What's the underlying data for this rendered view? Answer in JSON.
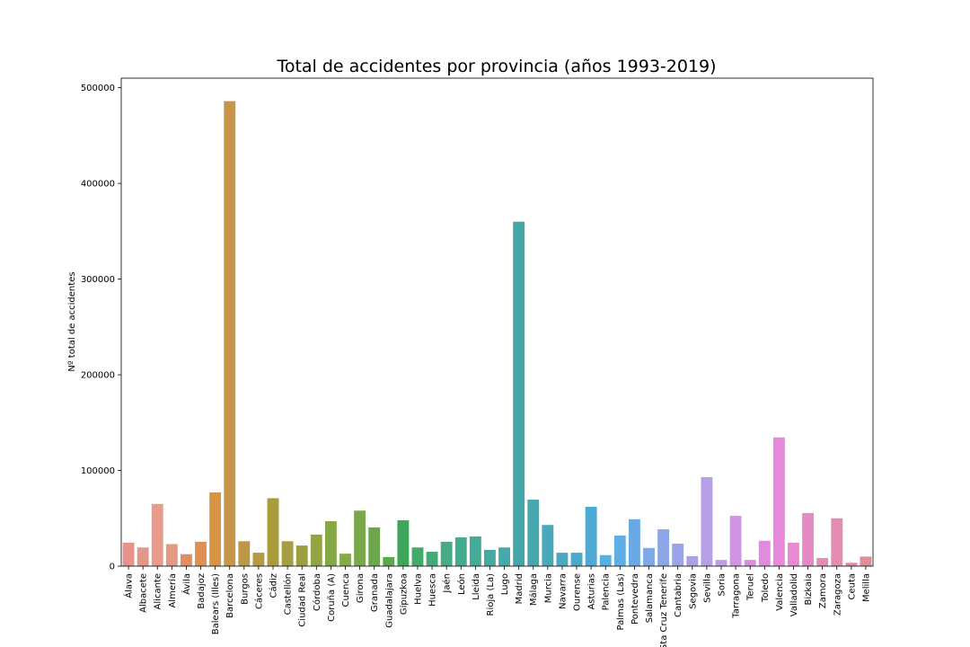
{
  "chart_data": {
    "type": "bar",
    "title": "Total de accidentes por provincia (años 1993-2019)",
    "xlabel": "",
    "ylabel": "Nº total de accidentes",
    "ylim": [
      0,
      510000
    ],
    "yticks": [
      0,
      100000,
      200000,
      300000,
      400000,
      500000
    ],
    "grid": false,
    "categories": [
      "Álava",
      "Albacete",
      "Alicante",
      "Almería",
      "Ávila",
      "Badajoz",
      "Balears (Illes)",
      "Barcelona",
      "Burgos",
      "Cáceres",
      "Cádiz",
      "Castellón",
      "Ciudad Real",
      "Córdoba",
      "Coruña (A)",
      "Cuenca",
      "Girona",
      "Granada",
      "Guadalajara",
      "Gipuzkoa",
      "Huelva",
      "Huesca",
      "Jaén",
      "León",
      "Lleida",
      "Rioja (La)",
      "Lugo",
      "Madrid",
      "Málaga",
      "Murcia",
      "Navarra",
      "Ourense",
      "Asturias",
      "Palencia",
      "Palmas (Las)",
      "Pontevedra",
      "Salamanca",
      "Sta Cruz Tenerife",
      "Cantabria",
      "Segovia",
      "Sevilla",
      "Soria",
      "Tarragona",
      "Teruel",
      "Toledo",
      "Valencia",
      "Valladolid",
      "Bizkaia",
      "Zamora",
      "Zaragoza",
      "Ceuta",
      "Melilla"
    ],
    "values": [
      24500,
      19500,
      65000,
      23000,
      12500,
      25500,
      77000,
      486000,
      26000,
      14000,
      71000,
      26000,
      21500,
      33000,
      47000,
      13000,
      58000,
      40500,
      9500,
      48000,
      19500,
      15000,
      25500,
      30000,
      31000,
      17000,
      19500,
      360000,
      69500,
      43000,
      14000,
      14000,
      62000,
      11500,
      32000,
      49000,
      19000,
      38500,
      23500,
      10500,
      93000,
      6500,
      52500,
      6500,
      26500,
      134500,
      24500,
      55500,
      8500,
      50000,
      3500,
      10000
    ],
    "colors": [
      "#e8928e",
      "#e0988a",
      "#e89b8b",
      "#e39a82",
      "#e08e62",
      "#e09055",
      "#d69444",
      "#c8964a",
      "#bb9748",
      "#b39b43",
      "#aa9c3a",
      "#a59e42",
      "#9c9f3f",
      "#93a443",
      "#85a844",
      "#80ac4a",
      "#79a84a",
      "#6da64b",
      "#5ca94c",
      "#3ea55c",
      "#42aa6a",
      "#43ab78",
      "#45ac84",
      "#45ab8f",
      "#45ab99",
      "#45aaa1",
      "#45aaa9",
      "#45a6a8",
      "#47a8af",
      "#49a8ba",
      "#4aa9c0",
      "#4ca9c8",
      "#4eaad3",
      "#59aee0",
      "#60aee6",
      "#6ba9e6",
      "#7ea8e6",
      "#8da6e6",
      "#9aa4e6",
      "#a9a3e6",
      "#b79fe5",
      "#c39be4",
      "#d094e4",
      "#db8ee1",
      "#e28ade",
      "#e88adb",
      "#e78ad0",
      "#e68ac6",
      "#e68cbb",
      "#e58cb1",
      "#e28da5",
      "#e08e98"
    ]
  }
}
